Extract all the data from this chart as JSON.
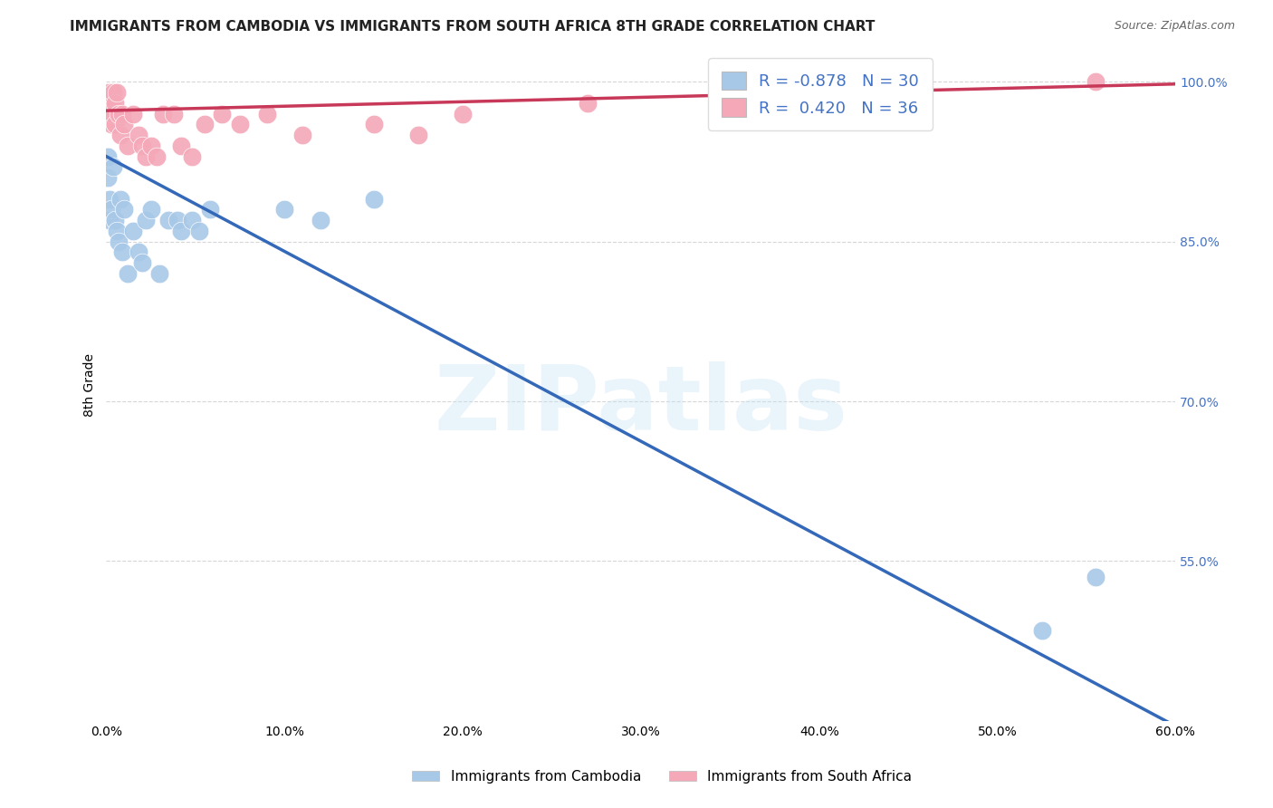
{
  "title": "IMMIGRANTS FROM CAMBODIA VS IMMIGRANTS FROM SOUTH AFRICA 8TH GRADE CORRELATION CHART",
  "source": "Source: ZipAtlas.com",
  "ylabel": "8th Grade",
  "legend_label1": "Immigrants from Cambodia",
  "legend_label2": "Immigrants from South Africa",
  "R1": -0.878,
  "N1": 30,
  "R2": 0.42,
  "N2": 36,
  "color1": "#a8c8e8",
  "color2": "#f4a8b8",
  "line_color1": "#3468b8",
  "line_color2": "#c83858",
  "xmin": 0.0,
  "xmax": 0.6,
  "ymin": 0.4,
  "ymax": 1.03,
  "background_color": "#ffffff",
  "watermark": "ZIPatlas",
  "blue_points_x": [
    0.001,
    0.001,
    0.002,
    0.002,
    0.003,
    0.004,
    0.005,
    0.006,
    0.007,
    0.008,
    0.009,
    0.01,
    0.012,
    0.015,
    0.018,
    0.02,
    0.022,
    0.025,
    0.03,
    0.035,
    0.04,
    0.042,
    0.048,
    0.052,
    0.058,
    0.1,
    0.12,
    0.15,
    0.525,
    0.555
  ],
  "blue_points_y": [
    0.93,
    0.91,
    0.89,
    0.87,
    0.88,
    0.92,
    0.87,
    0.86,
    0.85,
    0.89,
    0.84,
    0.88,
    0.82,
    0.86,
    0.84,
    0.83,
    0.87,
    0.88,
    0.82,
    0.87,
    0.87,
    0.86,
    0.87,
    0.86,
    0.88,
    0.88,
    0.87,
    0.89,
    0.485,
    0.535
  ],
  "pink_points_x": [
    0.001,
    0.001,
    0.002,
    0.002,
    0.003,
    0.003,
    0.004,
    0.004,
    0.005,
    0.005,
    0.006,
    0.007,
    0.008,
    0.009,
    0.01,
    0.012,
    0.015,
    0.018,
    0.02,
    0.022,
    0.025,
    0.028,
    0.032,
    0.038,
    0.042,
    0.048,
    0.055,
    0.065,
    0.075,
    0.09,
    0.11,
    0.15,
    0.175,
    0.2,
    0.27,
    0.555
  ],
  "pink_points_y": [
    0.99,
    0.98,
    0.99,
    0.97,
    0.98,
    0.96,
    0.99,
    0.97,
    0.98,
    0.96,
    0.99,
    0.97,
    0.95,
    0.97,
    0.96,
    0.94,
    0.97,
    0.95,
    0.94,
    0.93,
    0.94,
    0.93,
    0.97,
    0.97,
    0.94,
    0.93,
    0.96,
    0.97,
    0.96,
    0.97,
    0.95,
    0.96,
    0.95,
    0.97,
    0.98,
    1.0
  ],
  "grid_color": "#cccccc",
  "yticks": [
    0.55,
    0.7,
    0.85,
    1.0
  ],
  "ytick_labels": [
    "55.0%",
    "70.0%",
    "85.0%",
    "100.0%"
  ],
  "xticks": [
    0.0,
    0.1,
    0.2,
    0.3,
    0.4,
    0.5,
    0.6
  ],
  "xtick_labels": [
    "0.0%",
    "10.0%",
    "20.0%",
    "30.0%",
    "40.0%",
    "50.0%",
    "60.0%"
  ],
  "title_fontsize": 11,
  "tick_fontsize": 10,
  "legend_fontsize": 13
}
